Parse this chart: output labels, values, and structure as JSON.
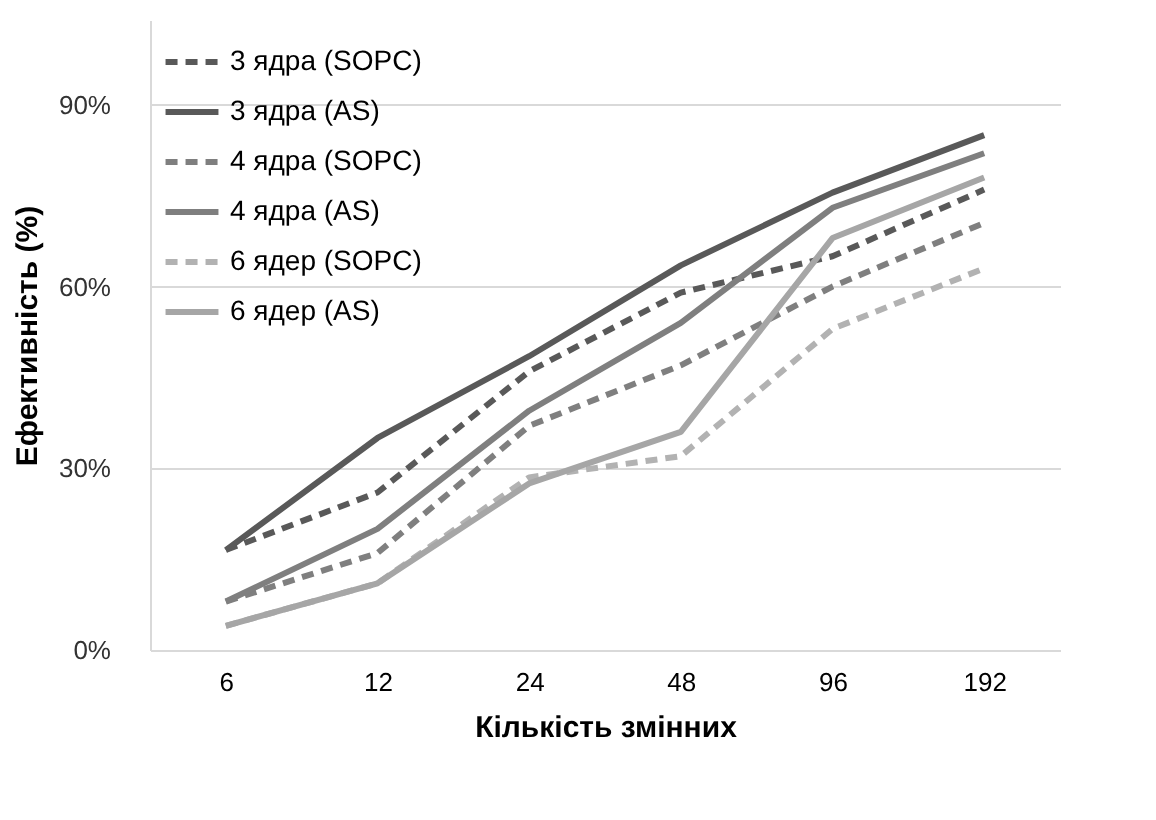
{
  "chart_data": {
    "type": "line",
    "xlabel": "Кількість змінних",
    "ylabel": "Ефективність (%)",
    "categories": [
      "6",
      "12",
      "24",
      "48",
      "96",
      "192"
    ],
    "series": [
      {
        "name": "3 ядра (SOPC)",
        "color": "#595959",
        "line_style": "dashed",
        "values": [
          16.5,
          26,
          46,
          59,
          65,
          76
        ]
      },
      {
        "name": "3 ядра (AS)",
        "color": "#595959",
        "line_style": "solid",
        "values": [
          16.5,
          35,
          48.5,
          63.5,
          75.5,
          85
        ]
      },
      {
        "name": "4 ядра (SOPC)",
        "color": "#7f7f7f",
        "line_style": "dashed",
        "values": [
          8,
          16,
          37,
          47,
          60,
          70.5
        ]
      },
      {
        "name": "4 ядра (AS)",
        "color": "#7f7f7f",
        "line_style": "solid",
        "values": [
          8,
          20,
          39.5,
          54,
          73,
          82
        ]
      },
      {
        "name": "6 ядер (SOPC)",
        "color": "#b2b2b2",
        "line_style": "dashed",
        "values": [
          4,
          11,
          28.5,
          32,
          53,
          63
        ]
      },
      {
        "name": "6 ядер (AS)",
        "color": "#a6a6a6",
        "line_style": "solid",
        "values": [
          4,
          11,
          27.5,
          36,
          68,
          78
        ]
      }
    ],
    "ylim": [
      0,
      104
    ],
    "yticks": [
      {
        "value": 0,
        "label": "0%"
      },
      {
        "value": 30,
        "label": "30%"
      },
      {
        "value": 60,
        "label": "60%"
      },
      {
        "value": 90,
        "label": "90%"
      }
    ],
    "grid": "y",
    "legend": "top left",
    "marker": "none"
  }
}
